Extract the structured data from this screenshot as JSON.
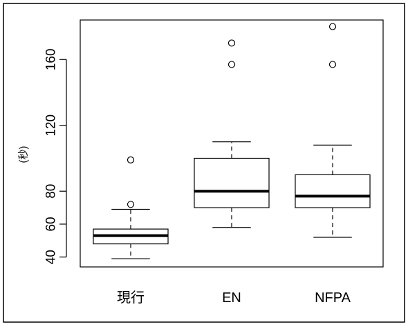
{
  "chart_data": {
    "type": "boxplot",
    "title": "",
    "xlabel": "",
    "ylabel": "(秒)",
    "ylim": [
      34,
      184
    ],
    "yticks": [
      40,
      60,
      80,
      120,
      160
    ],
    "grid": false,
    "categories": [
      "現行",
      "EN",
      "NFPA"
    ],
    "boxes": [
      {
        "category": "現行",
        "whisker_low": 39,
        "q1": 48,
        "median": 53,
        "q3": 57,
        "whisker_high": 69,
        "outliers": [
          99,
          72
        ]
      },
      {
        "category": "EN",
        "whisker_low": 58,
        "q1": 70,
        "median": 80,
        "q3": 100,
        "whisker_high": 110,
        "outliers": [
          170,
          157
        ]
      },
      {
        "category": "NFPA",
        "whisker_low": 52,
        "q1": 70,
        "median": 77,
        "q3": 90,
        "whisker_high": 108,
        "outliers": [
          180,
          157
        ]
      }
    ]
  }
}
